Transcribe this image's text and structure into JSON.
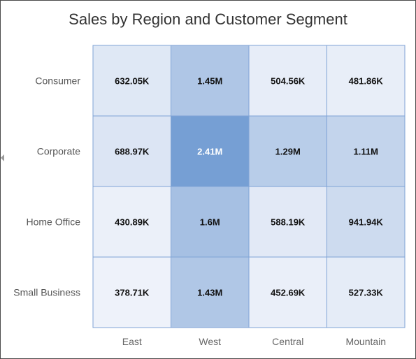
{
  "chart_data": {
    "type": "heatmap",
    "title": "Sales by Region and Customer Segment",
    "rows": [
      "Consumer",
      "Corporate",
      "Home Office",
      "Small Business"
    ],
    "columns": [
      "East",
      "West",
      "Central",
      "Mountain"
    ],
    "values": [
      [
        632050,
        1450000,
        504560,
        481860
      ],
      [
        688970,
        2410000,
        1290000,
        1110000
      ],
      [
        430890,
        1600000,
        588190,
        941940
      ],
      [
        378710,
        1430000,
        452690,
        527330
      ]
    ],
    "labels": [
      [
        "632.05K",
        "1.45M",
        "504.56K",
        "481.86K"
      ],
      [
        "688.97K",
        "2.41M",
        "1.29M",
        "1.11M"
      ],
      [
        "430.89K",
        "1.6M",
        "588.19K",
        "941.94K"
      ],
      [
        "378.71K",
        "1.43M",
        "452.69K",
        "527.33K"
      ]
    ],
    "color_low": "#eef2fa",
    "color_high": "#769fd4",
    "cell_border_color": "#7fa3d6",
    "label_color_dark": "#111111",
    "label_color_light": "#ffffff"
  }
}
